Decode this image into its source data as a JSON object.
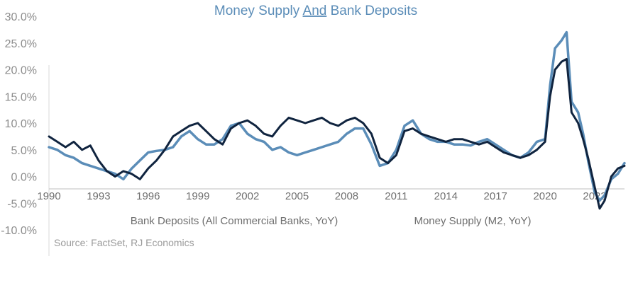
{
  "chart_data": {
    "type": "line",
    "title_parts": [
      "Money Supply ",
      "And",
      " Bank Deposits"
    ],
    "source": "Source: FactSet, RJ Economics",
    "ylim": [
      -10,
      30
    ],
    "y_ticks": [
      30,
      25,
      20,
      15,
      10,
      5,
      0,
      -5,
      -10
    ],
    "y_tick_labels": [
      "30.0%",
      "25.0%",
      "20.0%",
      "15.0%",
      "10.0%",
      "5.0%",
      "0.0%",
      "-5.0%",
      "-10.0%"
    ],
    "xlim": [
      1990,
      2024.8
    ],
    "x_ticks": [
      1990,
      1993,
      1996,
      1999,
      2002,
      2005,
      2008,
      2011,
      2014,
      2017,
      2020,
      2023
    ],
    "x_tick_labels": [
      "1990",
      "1993",
      "1996",
      "1999",
      "2002",
      "2005",
      "2008",
      "2011",
      "2014",
      "2017",
      "2020",
      "2023"
    ],
    "grid": false,
    "legend_position": "bottom",
    "series": [
      {
        "name": "Bank Deposits (All Commercial Banks, YoY)",
        "color": "#10243f",
        "points": [
          [
            1990,
            7.5
          ],
          [
            1990.5,
            6.5
          ],
          [
            1991,
            5.5
          ],
          [
            1991.5,
            6.5
          ],
          [
            1992,
            5.0
          ],
          [
            1992.5,
            5.8
          ],
          [
            1993,
            3.0
          ],
          [
            1993.5,
            1.0
          ],
          [
            1994,
            0.0
          ],
          [
            1994.5,
            1.0
          ],
          [
            1995,
            0.5
          ],
          [
            1995.5,
            -0.5
          ],
          [
            1996,
            1.5
          ],
          [
            1996.5,
            3.0
          ],
          [
            1997,
            5.0
          ],
          [
            1997.5,
            7.5
          ],
          [
            1998,
            8.5
          ],
          [
            1998.5,
            9.5
          ],
          [
            1999,
            10.0
          ],
          [
            1999.5,
            8.5
          ],
          [
            2000,
            7.0
          ],
          [
            2000.5,
            6.0
          ],
          [
            2001,
            9.0
          ],
          [
            2001.5,
            10.0
          ],
          [
            2002,
            10.5
          ],
          [
            2002.5,
            9.5
          ],
          [
            2003,
            8.0
          ],
          [
            2003.5,
            7.5
          ],
          [
            2004,
            9.5
          ],
          [
            2004.5,
            11.0
          ],
          [
            2005,
            10.5
          ],
          [
            2005.5,
            10.0
          ],
          [
            2006,
            10.5
          ],
          [
            2006.5,
            11.0
          ],
          [
            2007,
            10.0
          ],
          [
            2007.5,
            9.5
          ],
          [
            2008,
            10.5
          ],
          [
            2008.5,
            11.0
          ],
          [
            2009,
            10.0
          ],
          [
            2009.5,
            8.0
          ],
          [
            2010,
            3.5
          ],
          [
            2010.5,
            2.5
          ],
          [
            2011,
            4.0
          ],
          [
            2011.5,
            8.5
          ],
          [
            2012,
            9.0
          ],
          [
            2012.5,
            8.0
          ],
          [
            2013,
            7.5
          ],
          [
            2013.5,
            7.0
          ],
          [
            2014,
            6.5
          ],
          [
            2014.5,
            7.0
          ],
          [
            2015,
            7.0
          ],
          [
            2015.5,
            6.5
          ],
          [
            2016,
            6.0
          ],
          [
            2016.5,
            6.5
          ],
          [
            2017,
            5.5
          ],
          [
            2017.5,
            4.5
          ],
          [
            2018,
            4.0
          ],
          [
            2018.5,
            3.5
          ],
          [
            2019,
            4.0
          ],
          [
            2019.5,
            5.0
          ],
          [
            2020,
            6.5
          ],
          [
            2020.3,
            15.0
          ],
          [
            2020.6,
            20.0
          ],
          [
            2021,
            21.5
          ],
          [
            2021.3,
            22.0
          ],
          [
            2021.6,
            12.0
          ],
          [
            2022,
            10.0
          ],
          [
            2022.3,
            7.0
          ],
          [
            2022.6,
            3.5
          ],
          [
            2023,
            -2.0
          ],
          [
            2023.3,
            -6.0
          ],
          [
            2023.6,
            -4.5
          ],
          [
            2024,
            0.0
          ],
          [
            2024.4,
            1.5
          ],
          [
            2024.8,
            2.0
          ]
        ]
      },
      {
        "name": "Money Supply (M2, YoY)",
        "color": "#5b8db8",
        "points": [
          [
            1990,
            5.5
          ],
          [
            1990.5,
            5.0
          ],
          [
            1991,
            4.0
          ],
          [
            1991.5,
            3.5
          ],
          [
            1992,
            2.5
          ],
          [
            1992.5,
            2.0
          ],
          [
            1993,
            1.5
          ],
          [
            1993.5,
            1.0
          ],
          [
            1994,
            0.5
          ],
          [
            1994.5,
            -0.5
          ],
          [
            1995,
            1.5
          ],
          [
            1995.5,
            3.0
          ],
          [
            1996,
            4.5
          ],
          [
            1996.5,
            4.8
          ],
          [
            1997,
            5.0
          ],
          [
            1997.5,
            5.5
          ],
          [
            1998,
            7.5
          ],
          [
            1998.5,
            8.5
          ],
          [
            1999,
            7.0
          ],
          [
            1999.5,
            6.0
          ],
          [
            2000,
            6.0
          ],
          [
            2000.5,
            7.0
          ],
          [
            2001,
            9.5
          ],
          [
            2001.5,
            10.0
          ],
          [
            2002,
            8.0
          ],
          [
            2002.5,
            7.0
          ],
          [
            2003,
            6.5
          ],
          [
            2003.5,
            5.0
          ],
          [
            2004,
            5.5
          ],
          [
            2004.5,
            4.5
          ],
          [
            2005,
            4.0
          ],
          [
            2005.5,
            4.5
          ],
          [
            2006,
            5.0
          ],
          [
            2006.5,
            5.5
          ],
          [
            2007,
            6.0
          ],
          [
            2007.5,
            6.5
          ],
          [
            2008,
            8.0
          ],
          [
            2008.5,
            9.0
          ],
          [
            2009,
            9.0
          ],
          [
            2009.5,
            6.0
          ],
          [
            2010,
            2.0
          ],
          [
            2010.5,
            2.5
          ],
          [
            2011,
            5.0
          ],
          [
            2011.5,
            9.5
          ],
          [
            2012,
            10.5
          ],
          [
            2012.5,
            8.0
          ],
          [
            2013,
            7.0
          ],
          [
            2013.5,
            6.5
          ],
          [
            2014,
            6.5
          ],
          [
            2014.5,
            6.0
          ],
          [
            2015,
            6.0
          ],
          [
            2015.5,
            5.8
          ],
          [
            2016,
            6.5
          ],
          [
            2016.5,
            7.0
          ],
          [
            2017,
            6.0
          ],
          [
            2017.5,
            5.0
          ],
          [
            2018,
            4.0
          ],
          [
            2018.5,
            3.5
          ],
          [
            2019,
            4.5
          ],
          [
            2019.5,
            6.5
          ],
          [
            2020,
            7.0
          ],
          [
            2020.3,
            17.0
          ],
          [
            2020.6,
            24.0
          ],
          [
            2021,
            25.5
          ],
          [
            2021.3,
            27.0
          ],
          [
            2021.6,
            14.0
          ],
          [
            2022,
            12.0
          ],
          [
            2022.3,
            8.0
          ],
          [
            2022.6,
            3.0
          ],
          [
            2023,
            -3.0
          ],
          [
            2023.3,
            -4.5
          ],
          [
            2023.6,
            -3.5
          ],
          [
            2024,
            -0.5
          ],
          [
            2024.4,
            0.5
          ],
          [
            2024.8,
            2.5
          ]
        ]
      }
    ]
  }
}
